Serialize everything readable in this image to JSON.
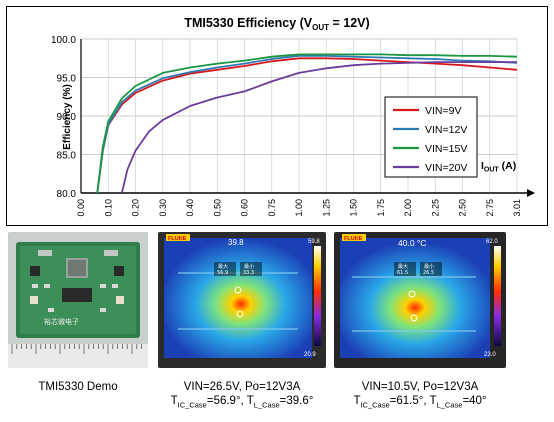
{
  "chart_data": {
    "type": "line",
    "title_main": "TMI5330 Efficiency (V",
    "title_sub": "OUT",
    "title_tail": " = 12V)",
    "ylabel": "Efficiency (%)",
    "xlabel_main": "I",
    "xlabel_sub": "OUT",
    "xlabel_tail": " (A)",
    "xlim": [
      0,
      3.0
    ],
    "ylim": [
      80,
      100
    ],
    "x_tick_labels": [
      "0.00",
      "0.10",
      "0.20",
      "0.30",
      "0.40",
      "0.50",
      "0.60",
      "0.75",
      "1.00",
      "1.25",
      "1.50",
      "1.75",
      "2.00",
      "2.25",
      "2.50",
      "2.75",
      "3.01"
    ],
    "y_tick_labels": [
      "80.0",
      "85.0",
      "90.0",
      "95.0",
      "100.0"
    ],
    "y_ticks": [
      80,
      85,
      90,
      95,
      100
    ],
    "grid": true,
    "legend_position": "right",
    "series": [
      {
        "name": "VIN=9V",
        "color": "#d7191c",
        "x": [
          0.06,
          0.08,
          0.1,
          0.15,
          0.2,
          0.3,
          0.4,
          0.5,
          0.6,
          0.75,
          1.0,
          1.25,
          1.5,
          1.75,
          2.0,
          2.25,
          2.5,
          2.75,
          3.01
        ],
        "y": [
          80.0,
          85.5,
          88.8,
          91.5,
          93.0,
          94.6,
          95.5,
          96.0,
          96.5,
          97.1,
          97.5,
          97.5,
          97.4,
          97.2,
          97.0,
          96.8,
          96.6,
          96.3,
          96.0
        ]
      },
      {
        "name": "VIN=12V",
        "color": "#2c7bb6",
        "x": [
          0.06,
          0.08,
          0.1,
          0.15,
          0.2,
          0.3,
          0.4,
          0.5,
          0.6,
          0.75,
          1.0,
          1.25,
          1.5,
          1.75,
          2.0,
          2.25,
          2.5,
          2.75,
          3.01
        ],
        "y": [
          80.0,
          85.5,
          88.9,
          91.8,
          93.3,
          94.9,
          95.7,
          96.3,
          96.8,
          97.4,
          97.8,
          97.8,
          97.7,
          97.6,
          97.5,
          97.4,
          97.2,
          97.1,
          96.9
        ]
      },
      {
        "name": "VIN=15V",
        "color": "#1a9641",
        "x": [
          0.06,
          0.08,
          0.1,
          0.15,
          0.2,
          0.3,
          0.4,
          0.5,
          0.6,
          0.75,
          1.0,
          1.25,
          1.5,
          1.75,
          2.0,
          2.25,
          2.5,
          2.75,
          3.01
        ],
        "y": [
          80.0,
          86.0,
          89.3,
          92.3,
          93.9,
          95.6,
          96.3,
          96.8,
          97.2,
          97.7,
          98.0,
          98.0,
          98.0,
          98.0,
          97.9,
          97.9,
          97.8,
          97.8,
          97.7
        ]
      },
      {
        "name": "VIN=20V",
        "color": "#6a3d9a",
        "x": [
          0.15,
          0.17,
          0.2,
          0.25,
          0.3,
          0.4,
          0.5,
          0.6,
          0.75,
          1.0,
          1.25,
          1.5,
          1.75,
          2.0,
          2.25,
          2.5,
          2.75,
          3.01
        ],
        "y": [
          80.0,
          83.0,
          85.5,
          88.0,
          89.5,
          91.3,
          92.4,
          93.2,
          94.5,
          95.6,
          96.2,
          96.6,
          96.8,
          96.9,
          97.0,
          97.0,
          97.0,
          97.0
        ]
      }
    ]
  },
  "photos": {
    "demo_brand": "裕芯微电子",
    "thermal_1": {
      "top_reading": "39.8",
      "max_label": "最大",
      "max_value": "56.9",
      "min_label": "最小",
      "min_value": "33.3",
      "scale_high": "59.8",
      "scale_low": "20.9",
      "brand": "FLUKE"
    },
    "thermal_2": {
      "top_reading": "40.0 °C",
      "max_label": "最大",
      "max_value": "61.5",
      "min_label": "最小",
      "min_value": "26.5",
      "scale_high": "62.0",
      "scale_low": "23.0",
      "brand": "FLUKE"
    }
  },
  "captions": {
    "demo": "TMI5330 Demo",
    "thermal_1_line1": "VIN=26.5V, Po=12V3A",
    "thermal_1_t1": "T",
    "thermal_1_t1_sub": "IC_Case",
    "thermal_1_t1_val": "=56.9°, ",
    "thermal_1_t2": "T",
    "thermal_1_t2_sub": "L_Case",
    "thermal_1_t2_val": "=39.6°",
    "thermal_2_line1": "VIN=10.5V, Po=12V3A",
    "thermal_2_t1": "T",
    "thermal_2_t1_sub": "IC_Case",
    "thermal_2_t1_val": "=61.5°, ",
    "thermal_2_t2": "T",
    "thermal_2_t2_sub": "L_Case",
    "thermal_2_t2_val": "=40°"
  }
}
